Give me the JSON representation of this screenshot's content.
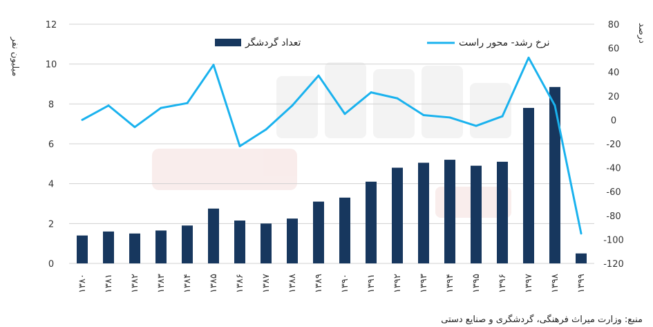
{
  "chart_data": {
    "type": "bar",
    "categories": [
      "۱۳۸۰",
      "۱۳۸۱",
      "۱۳۸۲",
      "۱۳۸۳",
      "۱۳۸۴",
      "۱۳۸۵",
      "۱۳۸۶",
      "۱۳۸۷",
      "۱۳۸۸",
      "۱۳۸۹",
      "۱۳۹۰",
      "۱۳۹۱",
      "۱۳۹۲",
      "۱۳۹۳",
      "۱۳۹۴",
      "۱۳۹۵",
      "۱۳۹۶",
      "۱۳۹۷",
      "۱۳۹۸",
      "۱۳۹۹"
    ],
    "series": [
      {
        "name": "تعداد گردشگر",
        "type": "bar",
        "axis": "left",
        "color": "#17375e",
        "values": [
          1.4,
          1.6,
          1.5,
          1.65,
          1.9,
          2.75,
          2.15,
          2.0,
          2.25,
          3.1,
          3.3,
          4.1,
          4.8,
          5.05,
          5.2,
          4.9,
          5.1,
          7.8,
          8.85,
          0.5
        ]
      },
      {
        "name": "نرخ رشد- محور راست",
        "type": "line",
        "axis": "right",
        "color": "#1ab2ee",
        "values": [
          0,
          12,
          -6,
          10,
          14,
          46,
          -22,
          -8,
          12,
          37,
          5,
          23,
          18,
          4,
          2,
          -5,
          3,
          52,
          12,
          -95
        ]
      }
    ],
    "ylabel": "میلیون نفر",
    "ylabel_right": "درصد",
    "ylim": [
      0,
      12
    ],
    "yticks": [
      "0",
      "2",
      "4",
      "6",
      "8",
      "10",
      "12"
    ],
    "ylim_right": [
      -120,
      80
    ],
    "yticks_right": [
      "-120",
      "-100",
      "-80",
      "-60",
      "-40",
      "-20",
      "0",
      "20",
      "40",
      "60",
      "80"
    ],
    "grid": true,
    "legend_position": "top"
  },
  "source": "منبع: وزارت میراث فرهنگی، گردشگری و صنایع دستی"
}
